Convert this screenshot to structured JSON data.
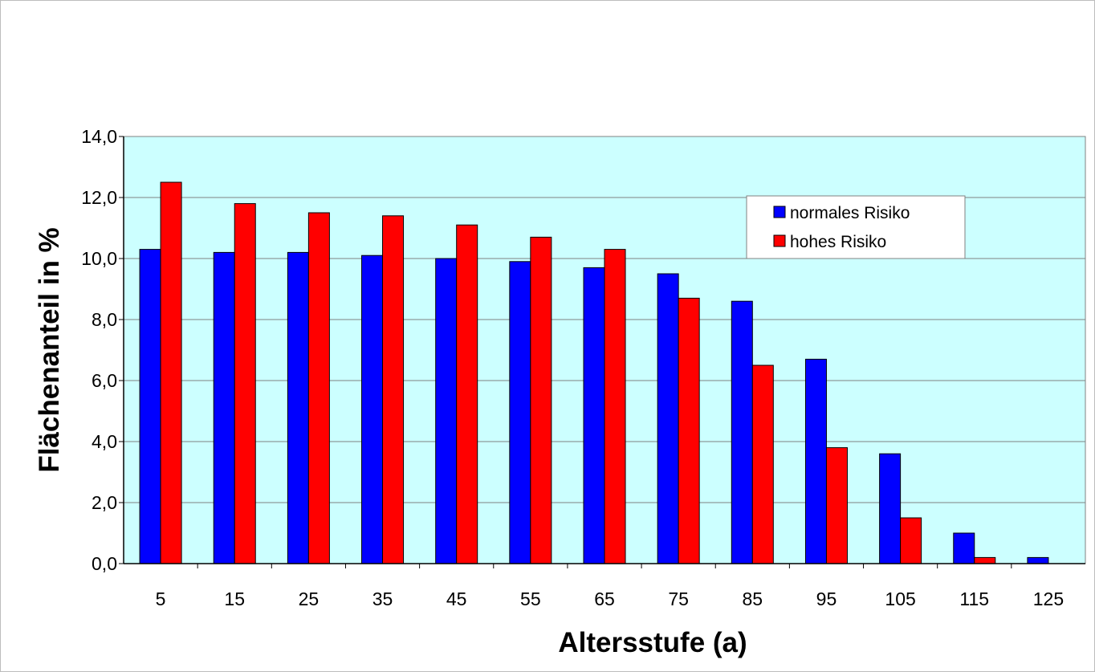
{
  "chart_data": {
    "type": "bar",
    "title": "",
    "xlabel": "Altersstufe (a)",
    "ylabel": "Flächenanteil in %",
    "categories": [
      "5",
      "15",
      "25",
      "35",
      "45",
      "55",
      "65",
      "75",
      "85",
      "95",
      "105",
      "115",
      "125"
    ],
    "series": [
      {
        "name": "normales Risiko",
        "color": "#0000ff",
        "values": [
          10.3,
          10.2,
          10.2,
          10.1,
          10.0,
          9.9,
          9.7,
          9.5,
          8.6,
          6.7,
          3.6,
          1.0,
          0.2
        ]
      },
      {
        "name": "hohes Risiko",
        "color": "#ff0000",
        "values": [
          12.5,
          11.8,
          11.5,
          11.4,
          11.1,
          10.7,
          10.3,
          8.7,
          6.5,
          3.8,
          1.5,
          0.2,
          0.0
        ]
      }
    ],
    "ylim": [
      0,
      14
    ],
    "yticks": [
      "0,0",
      "2,0",
      "4,0",
      "6,0",
      "8,0",
      "10,0",
      "12,0",
      "14,0"
    ],
    "grid": true,
    "legend_position": "top-right",
    "plot_background": "#ccffff"
  }
}
